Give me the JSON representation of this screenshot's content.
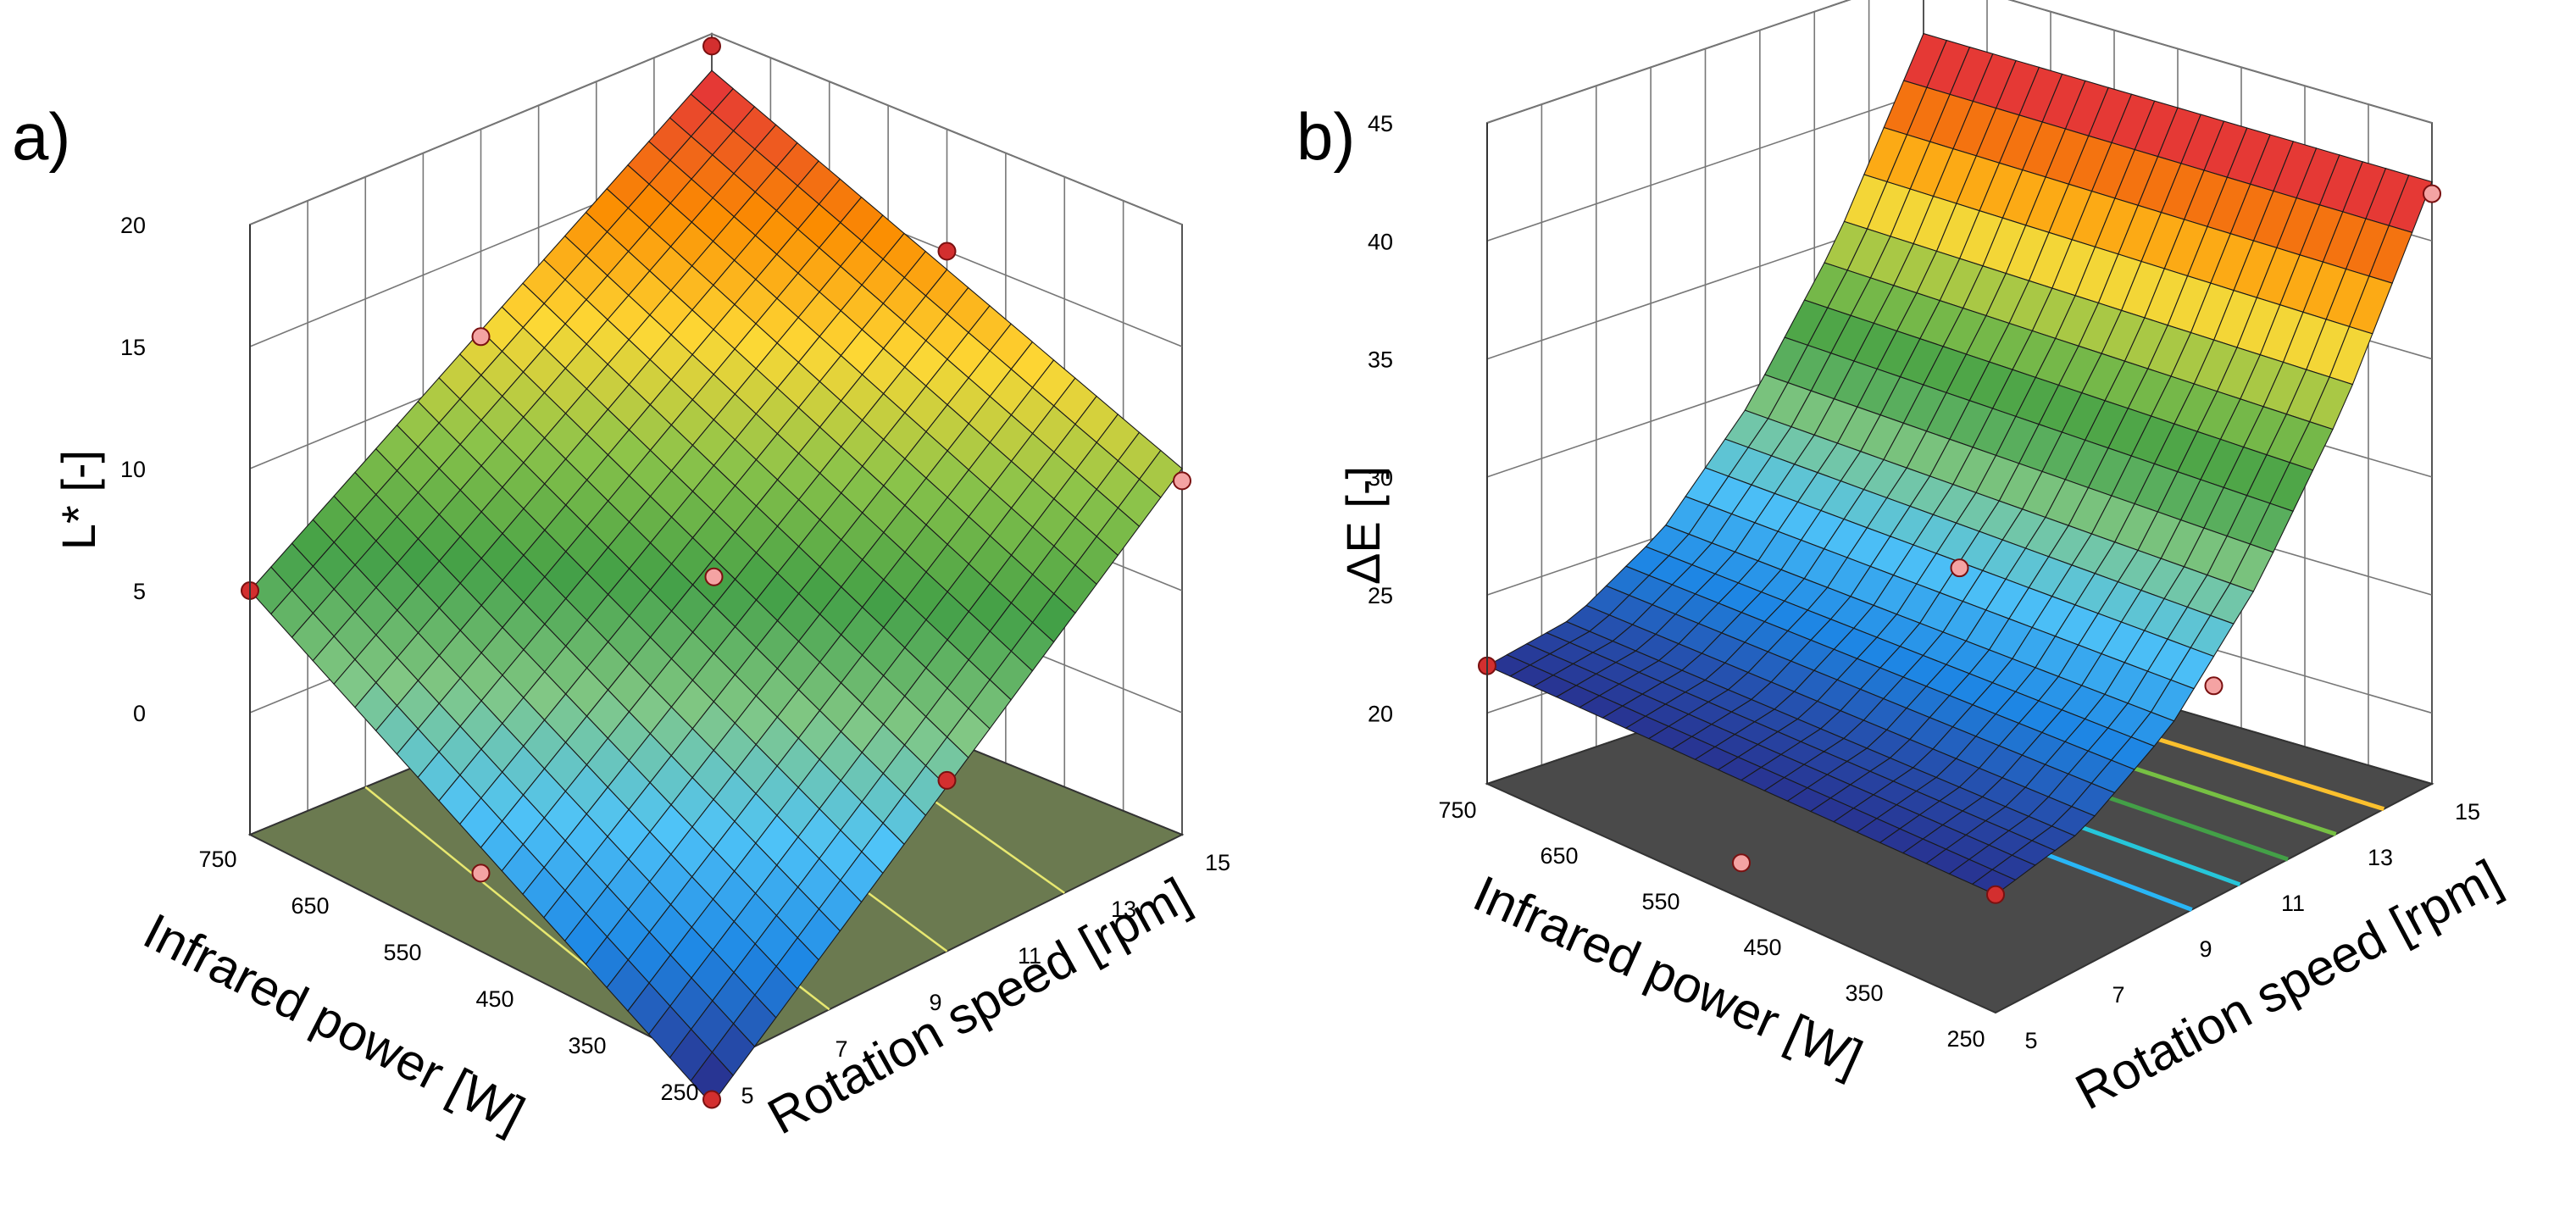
{
  "figure": {
    "panels": [
      {
        "label": "a)"
      },
      {
        "label": "b)"
      }
    ]
  },
  "chart_data": [
    {
      "type": "surface3d",
      "panel_label": "a)",
      "title": "",
      "xlabel": "Infrared power [W]",
      "ylabel": "Rotation speed [rpm]",
      "zlabel": "L* [-]",
      "x_ticks": [
        "750",
        "650",
        "550",
        "450",
        "350",
        "250"
      ],
      "y_ticks": [
        "5",
        "7",
        "9",
        "11",
        "13",
        "15"
      ],
      "z_ticks": [
        "0",
        "5",
        "10",
        "15",
        "20"
      ],
      "xlim": [
        250,
        750
      ],
      "ylim": [
        5,
        15
      ],
      "zlim": [
        -5,
        20
      ],
      "surface": {
        "x": [
          250,
          750
        ],
        "y": [
          5,
          15
        ],
        "z": [
          [
            -6.5,
            10.0
          ],
          [
            5.0,
            18.5
          ]
        ]
      },
      "points": [
        {
          "x": 250,
          "y": 5,
          "z": -6.3
        },
        {
          "x": 750,
          "y": 5,
          "z": 5.0
        },
        {
          "x": 250,
          "y": 15,
          "z": 9.5
        },
        {
          "x": 750,
          "y": 15,
          "z": 19.5
        },
        {
          "x": 500,
          "y": 10,
          "z": 6.0
        },
        {
          "x": 250,
          "y": 10,
          "z": 2.0
        },
        {
          "x": 750,
          "y": 10,
          "z": 11.5
        },
        {
          "x": 500,
          "y": 15,
          "z": 15.0
        },
        {
          "x": 500,
          "y": 5,
          "z": -1.8
        }
      ],
      "colormap": [
        "#283593",
        "#1e88e5",
        "#4fc3f7",
        "#81c784",
        "#43a047",
        "#8bc34a",
        "#fdd835",
        "#fb8c00",
        "#e53935"
      ],
      "floor_color": "#6b7a50",
      "contour_color": "#e8e870"
    },
    {
      "type": "surface3d",
      "panel_label": "b)",
      "title": "",
      "xlabel": "Infrared power [W]",
      "ylabel": "Rotation speed [rpm]",
      "zlabel": "ΔE [-]",
      "x_ticks": [
        "750",
        "650",
        "550",
        "450",
        "350",
        "250"
      ],
      "y_ticks": [
        "5",
        "7",
        "9",
        "11",
        "13",
        "15"
      ],
      "z_ticks": [
        "20",
        "25",
        "30",
        "35",
        "40",
        "45"
      ],
      "xlim": [
        250,
        750
      ],
      "ylim": [
        5,
        15
      ],
      "zlim": [
        17,
        45
      ],
      "surface": {
        "x": [
          250,
          750
        ],
        "y": [
          5,
          15
        ],
        "z_at_y": [
          [
            5,
            22.0
          ],
          [
            7,
            22.8
          ],
          [
            9,
            25.2
          ],
          [
            11,
            29.3
          ],
          [
            13,
            35.0
          ],
          [
            15,
            42.5
          ]
        ]
      },
      "points": [
        {
          "x": 250,
          "y": 5,
          "z": 22.0
        },
        {
          "x": 750,
          "y": 5,
          "z": 22.0
        },
        {
          "x": 250,
          "y": 15,
          "z": 42.0
        },
        {
          "x": 750,
          "y": 15,
          "z": 45.0
        },
        {
          "x": 500,
          "y": 10,
          "z": 27.0
        },
        {
          "x": 250,
          "y": 10,
          "z": 26.0
        },
        {
          "x": 500,
          "y": 5,
          "z": 18.5
        }
      ],
      "colormap": [
        "#283593",
        "#1e88e5",
        "#4fc3f7",
        "#81c784",
        "#43a047",
        "#8bc34a",
        "#fdd835",
        "#fb8c00",
        "#e53935"
      ],
      "floor_color": "#4a4a4a",
      "contour_colors": [
        "#29b6f6",
        "#26c6da",
        "#43a047",
        "#76c043",
        "#fbc02d"
      ]
    }
  ]
}
